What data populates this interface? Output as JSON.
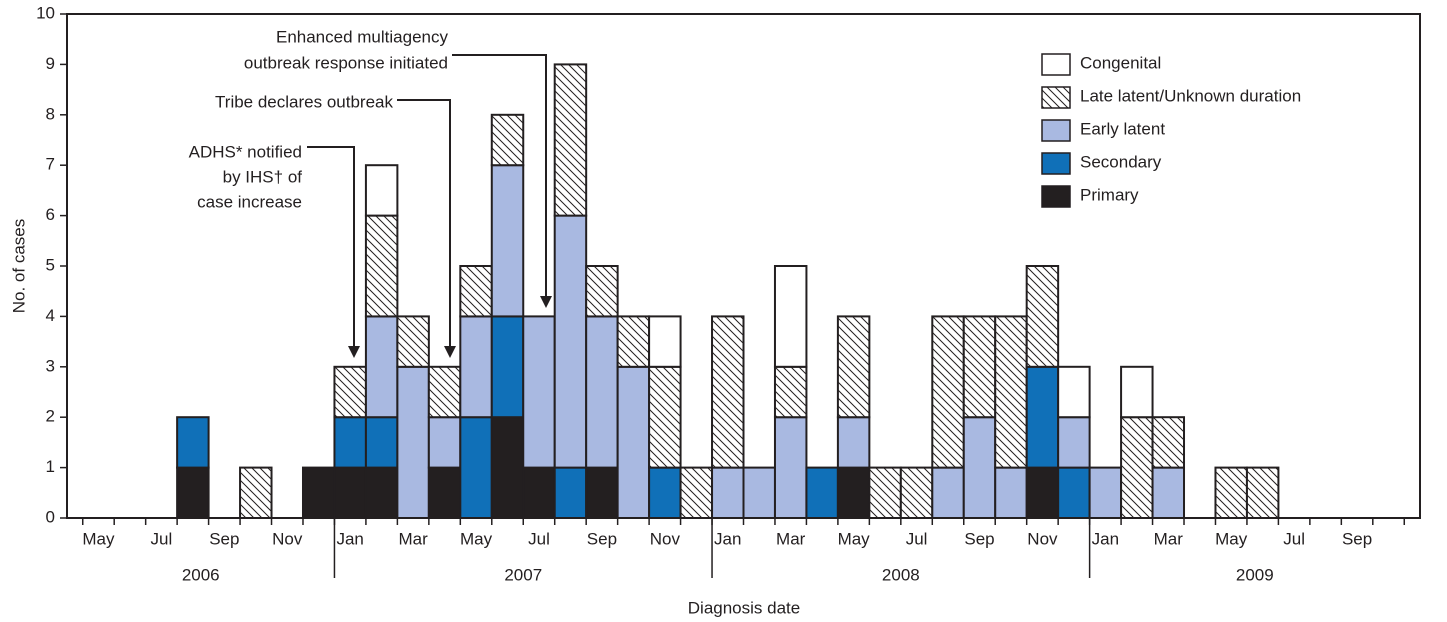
{
  "chart_data": {
    "type": "stacked_bar",
    "x_label": "Diagnosis date",
    "y_label": "No. of cases",
    "categories": [
      "May",
      null,
      "Jul",
      null,
      "Sep",
      null,
      "Nov",
      null,
      "Jan",
      null,
      "Mar",
      null,
      "May",
      null,
      "Jul",
      null,
      "Sep",
      null,
      "Nov",
      null,
      "Jan",
      null,
      "Mar",
      null,
      "May",
      null,
      "Jul",
      null,
      "Sep",
      null,
      "Nov",
      null,
      "Jan",
      null,
      "Mar",
      null,
      "May",
      null,
      "Jul",
      null,
      "Sep",
      null
    ],
    "years": [
      {
        "label": "2006",
        "months": 8
      },
      {
        "label": "2007",
        "months": 12
      },
      {
        "label": "2008",
        "months": 12
      },
      {
        "label": "2009",
        "months": 10
      }
    ],
    "series": [
      {
        "name": "Primary",
        "color": "#231f20",
        "values": [
          0,
          0,
          0,
          1,
          0,
          0,
          0,
          1,
          1,
          1,
          0,
          1,
          0,
          2,
          1,
          0,
          1,
          0,
          0,
          0,
          0,
          0,
          0,
          0,
          1,
          0,
          0,
          0,
          0,
          0,
          1,
          0,
          0,
          0,
          0,
          0,
          0,
          0,
          0,
          0,
          0,
          0
        ]
      },
      {
        "name": "Secondary",
        "color": "#1070b8",
        "values": [
          0,
          0,
          0,
          1,
          0,
          0,
          0,
          0,
          1,
          1,
          0,
          0,
          2,
          2,
          0,
          1,
          0,
          0,
          1,
          0,
          0,
          0,
          0,
          1,
          0,
          0,
          0,
          0,
          0,
          0,
          2,
          1,
          0,
          0,
          0,
          0,
          0,
          0,
          0,
          0,
          0,
          0
        ]
      },
      {
        "name": "Early latent",
        "color": "#a9b9e1",
        "values": [
          0,
          0,
          0,
          0,
          0,
          0,
          0,
          0,
          0,
          2,
          3,
          1,
          2,
          3,
          3,
          5,
          3,
          3,
          0,
          0,
          1,
          1,
          2,
          0,
          1,
          0,
          0,
          1,
          2,
          1,
          0,
          1,
          1,
          0,
          1,
          0,
          0,
          0,
          0,
          0,
          0,
          0
        ]
      },
      {
        "name": "Late latent/Unknown duration",
        "color": "#ffffff",
        "pattern": "hatch",
        "values": [
          0,
          0,
          0,
          0,
          0,
          1,
          0,
          0,
          1,
          2,
          1,
          1,
          1,
          1,
          0,
          3,
          1,
          1,
          2,
          1,
          3,
          0,
          1,
          0,
          2,
          1,
          1,
          3,
          2,
          3,
          2,
          0,
          0,
          2,
          1,
          0,
          1,
          1,
          0,
          0,
          0,
          0
        ]
      },
      {
        "name": "Congenital",
        "color": "#ffffff",
        "values": [
          0,
          0,
          0,
          0,
          0,
          0,
          0,
          0,
          0,
          1,
          0,
          0,
          0,
          0,
          0,
          0,
          0,
          0,
          1,
          0,
          0,
          0,
          2,
          0,
          0,
          0,
          0,
          0,
          0,
          0,
          0,
          1,
          0,
          1,
          0,
          0,
          0,
          0,
          0,
          0,
          0,
          0
        ]
      }
    ],
    "ylim": [
      0,
      10
    ],
    "yticks": [
      0,
      1,
      2,
      3,
      4,
      5,
      6,
      7,
      8,
      9,
      10
    ],
    "annotations": [
      {
        "lines": [
          "ADHS* notified",
          "by IHS† of",
          "case increase"
        ]
      },
      {
        "lines": [
          "Tribe declares outbreak"
        ]
      },
      {
        "lines": [
          "Enhanced multiagency",
          "outbreak response initiated"
        ]
      }
    ]
  }
}
